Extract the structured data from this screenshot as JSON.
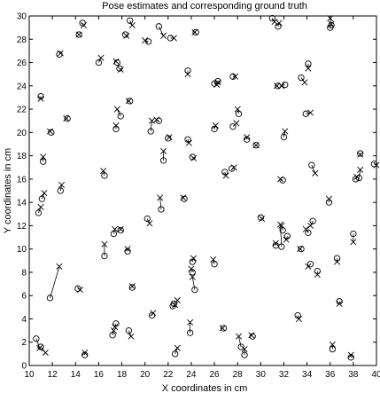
{
  "chart_data": {
    "type": "scatter",
    "title": "Pose estimates and corresponding ground truth",
    "xlabel": "X coordinates in cm",
    "ylabel": "Y coordinates in cm",
    "xlim": [
      10,
      40
    ],
    "ylim": [
      0,
      30
    ],
    "xticks": [
      "10",
      "12",
      "14",
      "16",
      "18",
      "20",
      "22",
      "24",
      "26",
      "28",
      "30",
      "32",
      "34",
      "36",
      "38",
      "40"
    ],
    "yticks": [
      "0",
      "2",
      "4",
      "6",
      "8",
      "10",
      "12",
      "14",
      "16",
      "18",
      "20",
      "22",
      "24",
      "26",
      "28",
      "30"
    ],
    "grid": false,
    "legend": "none",
    "series": [
      {
        "marker": "circle",
        "color": "#000000",
        "points": [
          [
            10.6,
            2.3
          ],
          [
            11.0,
            1.6
          ],
          [
            14.8,
            0.9
          ],
          [
            17.2,
            2.6
          ],
          [
            18.6,
            3.0
          ],
          [
            17.5,
            3.6
          ],
          [
            20.6,
            4.3
          ],
          [
            22.4,
            5.1
          ],
          [
            22.6,
            1.0
          ],
          [
            23.9,
            2.8
          ],
          [
            24.1,
            8.0
          ],
          [
            24.1,
            8.9
          ],
          [
            24.3,
            6.5
          ],
          [
            26.0,
            8.7
          ],
          [
            26.8,
            3.2
          ],
          [
            28.3,
            1.6
          ],
          [
            28.6,
            0.9
          ],
          [
            29.3,
            2.5
          ],
          [
            31.3,
            10.3
          ],
          [
            31.8,
            10.2
          ],
          [
            33.2,
            4.3
          ],
          [
            34.3,
            8.7
          ],
          [
            34.9,
            8.1
          ],
          [
            36.2,
            1.4
          ],
          [
            36.8,
            5.5
          ],
          [
            36.6,
            9.2
          ],
          [
            37.8,
            0.7
          ],
          [
            38.0,
            11.3
          ],
          [
            34.1,
            11.4
          ],
          [
            34.5,
            12.4
          ],
          [
            31.9,
            11.6
          ],
          [
            32.3,
            11.1
          ],
          [
            30.0,
            12.7
          ],
          [
            31.9,
            15.9
          ],
          [
            34.4,
            17.2
          ],
          [
            38.2,
            16.0
          ],
          [
            38.5,
            16.1
          ],
          [
            38.6,
            18.2
          ],
          [
            39.8,
            17.3
          ],
          [
            35.9,
            14.0
          ],
          [
            33.5,
            10.0
          ],
          [
            11.8,
            5.8
          ],
          [
            14.2,
            6.6
          ],
          [
            16.5,
            9.4
          ],
          [
            17.3,
            11.3
          ],
          [
            17.9,
            11.6
          ],
          [
            18.9,
            6.7
          ],
          [
            20.2,
            12.6
          ],
          [
            21.4,
            13.4
          ],
          [
            23.4,
            14.3
          ],
          [
            10.8,
            13.1
          ],
          [
            11.1,
            14.3
          ],
          [
            11.2,
            17.5
          ],
          [
            12.7,
            15.0
          ],
          [
            16.5,
            16.3
          ],
          [
            21.6,
            17.6
          ],
          [
            24.1,
            17.9
          ],
          [
            26.9,
            16.6
          ],
          [
            27.5,
            16.9
          ],
          [
            26.0,
            20.3
          ],
          [
            27.6,
            20.5
          ],
          [
            28.1,
            21.6
          ],
          [
            28.8,
            19.4
          ],
          [
            29.6,
            18.9
          ],
          [
            32.0,
            19.6
          ],
          [
            32.1,
            24.1
          ],
          [
            31.5,
            24.0
          ],
          [
            33.5,
            24.7
          ],
          [
            33.9,
            21.6
          ],
          [
            34.1,
            25.9
          ],
          [
            36.1,
            29.2
          ],
          [
            36.0,
            29.0
          ],
          [
            31.0,
            29.8
          ],
          [
            31.5,
            29.1
          ],
          [
            27.6,
            24.8
          ],
          [
            26.0,
            24.2
          ],
          [
            26.3,
            24.4
          ],
          [
            23.7,
            25.3
          ],
          [
            22.2,
            28.1
          ],
          [
            21.2,
            29.1
          ],
          [
            24.4,
            28.6
          ],
          [
            20.3,
            27.8
          ],
          [
            18.3,
            28.4
          ],
          [
            18.7,
            29.6
          ],
          [
            16.0,
            26.0
          ],
          [
            17.6,
            26.0
          ],
          [
            17.8,
            25.5
          ],
          [
            17.9,
            21.4
          ],
          [
            18.7,
            22.7
          ],
          [
            20.5,
            20.1
          ],
          [
            21.2,
            21.0
          ],
          [
            22.0,
            19.5
          ],
          [
            23.7,
            19.4
          ],
          [
            17.5,
            20.3
          ],
          [
            11.0,
            23.1
          ],
          [
            11.9,
            20.0
          ],
          [
            13.3,
            21.2
          ],
          [
            14.3,
            28.4
          ],
          [
            14.6,
            29.4
          ],
          [
            12.6,
            26.7
          ],
          [
            18.5,
            9.8
          ],
          [
            22.5,
            5.3
          ]
        ]
      },
      {
        "marker": "cross",
        "color": "#000000",
        "points": [
          [
            10.9,
            1.5
          ],
          [
            11.4,
            1.1
          ],
          [
            14.8,
            1.1
          ],
          [
            17.3,
            3.0
          ],
          [
            18.8,
            2.5
          ],
          [
            17.4,
            3.3
          ],
          [
            20.7,
            4.5
          ],
          [
            22.6,
            5.2
          ],
          [
            22.8,
            1.5
          ],
          [
            23.9,
            3.7
          ],
          [
            24.0,
            8.3
          ],
          [
            24.2,
            9.2
          ],
          [
            24.1,
            7.6
          ],
          [
            25.9,
            9.1
          ],
          [
            26.7,
            3.2
          ],
          [
            28.1,
            2.5
          ],
          [
            28.6,
            1.4
          ],
          [
            29.2,
            2.6
          ],
          [
            31.3,
            10.5
          ],
          [
            31.7,
            12.1
          ],
          [
            33.3,
            4.0
          ],
          [
            34.1,
            8.5
          ],
          [
            34.9,
            7.8
          ],
          [
            36.2,
            1.8
          ],
          [
            36.8,
            5.3
          ],
          [
            36.6,
            8.9
          ],
          [
            37.8,
            0.9
          ],
          [
            38.0,
            10.6
          ],
          [
            33.9,
            11.7
          ],
          [
            34.3,
            12.0
          ],
          [
            31.8,
            12.0
          ],
          [
            32.2,
            10.8
          ],
          [
            30.1,
            12.6
          ],
          [
            31.7,
            16.0
          ],
          [
            34.7,
            16.5
          ],
          [
            38.3,
            16.2
          ],
          [
            38.6,
            16.8
          ],
          [
            38.6,
            18.1
          ],
          [
            40.0,
            17.2
          ],
          [
            35.9,
            14.3
          ],
          [
            33.4,
            10.0
          ],
          [
            12.6,
            8.5
          ],
          [
            14.4,
            6.5
          ],
          [
            16.5,
            10.4
          ],
          [
            17.4,
            11.7
          ],
          [
            17.9,
            11.7
          ],
          [
            18.9,
            6.8
          ],
          [
            20.4,
            12.2
          ],
          [
            21.3,
            14.4
          ],
          [
            23.3,
            14.4
          ],
          [
            11.0,
            13.6
          ],
          [
            11.3,
            14.8
          ],
          [
            11.2,
            17.9
          ],
          [
            12.8,
            15.5
          ],
          [
            16.4,
            16.7
          ],
          [
            21.6,
            18.4
          ],
          [
            24.2,
            17.8
          ],
          [
            27.0,
            16.3
          ],
          [
            27.7,
            17.0
          ],
          [
            26.1,
            20.6
          ],
          [
            27.9,
            20.8
          ],
          [
            28.0,
            22.0
          ],
          [
            28.8,
            19.6
          ],
          [
            29.6,
            18.9
          ],
          [
            32.1,
            20.1
          ],
          [
            31.8,
            24.0
          ],
          [
            31.4,
            24.0
          ],
          [
            33.8,
            24.3
          ],
          [
            34.3,
            21.7
          ],
          [
            34.1,
            25.5
          ],
          [
            36.0,
            29.8
          ],
          [
            36.1,
            29.3
          ],
          [
            31.2,
            29.5
          ],
          [
            31.6,
            29.4
          ],
          [
            27.8,
            24.8
          ],
          [
            26.2,
            24.1
          ],
          [
            26.3,
            24.3
          ],
          [
            23.7,
            25.0
          ],
          [
            22.5,
            28.1
          ],
          [
            21.6,
            28.3
          ],
          [
            24.3,
            28.6
          ],
          [
            20.0,
            27.9
          ],
          [
            18.4,
            28.3
          ],
          [
            18.9,
            29.2
          ],
          [
            16.2,
            26.4
          ],
          [
            17.5,
            26.1
          ],
          [
            17.9,
            25.4
          ],
          [
            17.6,
            22.0
          ],
          [
            18.6,
            22.7
          ],
          [
            20.6,
            21.0
          ],
          [
            21.0,
            21.1
          ],
          [
            22.1,
            19.6
          ],
          [
            23.8,
            19.1
          ],
          [
            17.5,
            20.6
          ],
          [
            11.0,
            22.9
          ],
          [
            11.8,
            20.1
          ],
          [
            13.2,
            21.2
          ],
          [
            14.3,
            28.4
          ],
          [
            14.7,
            29.2
          ],
          [
            12.7,
            26.8
          ],
          [
            18.5,
            10.0
          ],
          [
            22.8,
            5.6
          ]
        ]
      }
    ]
  }
}
